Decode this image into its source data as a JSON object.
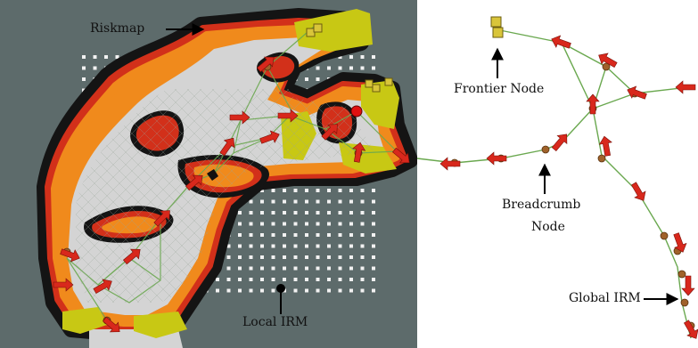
{
  "labels": {
    "riskmap": "Riskmap",
    "frontier_node": "Frontier Node",
    "breadcrumb_line1": "Breadcrumb",
    "breadcrumb_line2": "Node",
    "global_irm": "Global IRM",
    "local_irm": "Local IRM"
  },
  "colors": {
    "map_background": "#5d6b6b",
    "risk_black": "#141414",
    "risk_red": "#d2301a",
    "risk_orange": "#f08a1c",
    "risk_yellow": "#f5c342",
    "free_space": "#d4d4d4",
    "unknown_yellow": "#c8c814",
    "graph_edge": "#6aa84f",
    "node_brown": "#a0622a",
    "arrow_red": "#d8281c",
    "frontier_yellow": "#d9c53a"
  }
}
